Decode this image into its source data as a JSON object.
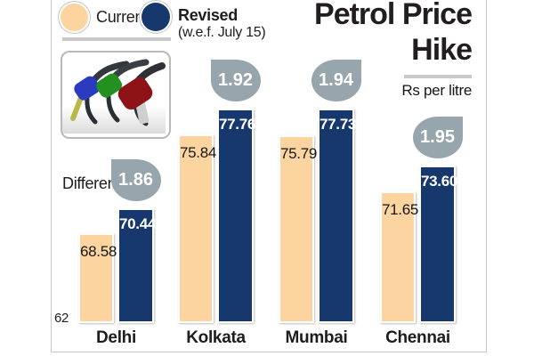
{
  "title": {
    "line1": "Petrol Price",
    "line2": "Hike",
    "unit": "Rs per litre"
  },
  "legend": {
    "current_label": "Current",
    "revised_label": "Revised",
    "revised_note": "(w.e.f. July 15)"
  },
  "difference_label": "Difference",
  "baseline_label": "62",
  "colors": {
    "current_bar": "#fbd4a0",
    "revised_bar": "#17386d",
    "droplet": "#97a5ad",
    "rule_gray": "#c9c9c9",
    "text": "#1d1d1d"
  },
  "nozzle_image": {
    "description": "three petrol pump nozzles (blue, green, red)"
  },
  "chart_data": {
    "type": "bar",
    "title": "Petrol Price Hike",
    "ylabel": "Rs per litre",
    "baseline": 62,
    "grid": false,
    "legend_position": "top-left",
    "categories": [
      "Delhi",
      "Kolkata",
      "Mumbai",
      "Chennai"
    ],
    "series": [
      {
        "name": "Current",
        "values": [
          68.58,
          75.84,
          75.79,
          71.65
        ]
      },
      {
        "name": "Revised (w.e.f. July 15)",
        "values": [
          70.44,
          77.76,
          77.73,
          73.6
        ]
      }
    ],
    "differences": [
      1.86,
      1.92,
      1.94,
      1.95
    ],
    "value_labels": {
      "current": [
        "68.58",
        "75.84",
        "75.79",
        "71.65"
      ],
      "revised": [
        "70.44",
        "77.76",
        "77.73",
        "73.60"
      ],
      "differences": [
        "1.86",
        "1.92",
        "1.94",
        "1.95"
      ]
    }
  }
}
